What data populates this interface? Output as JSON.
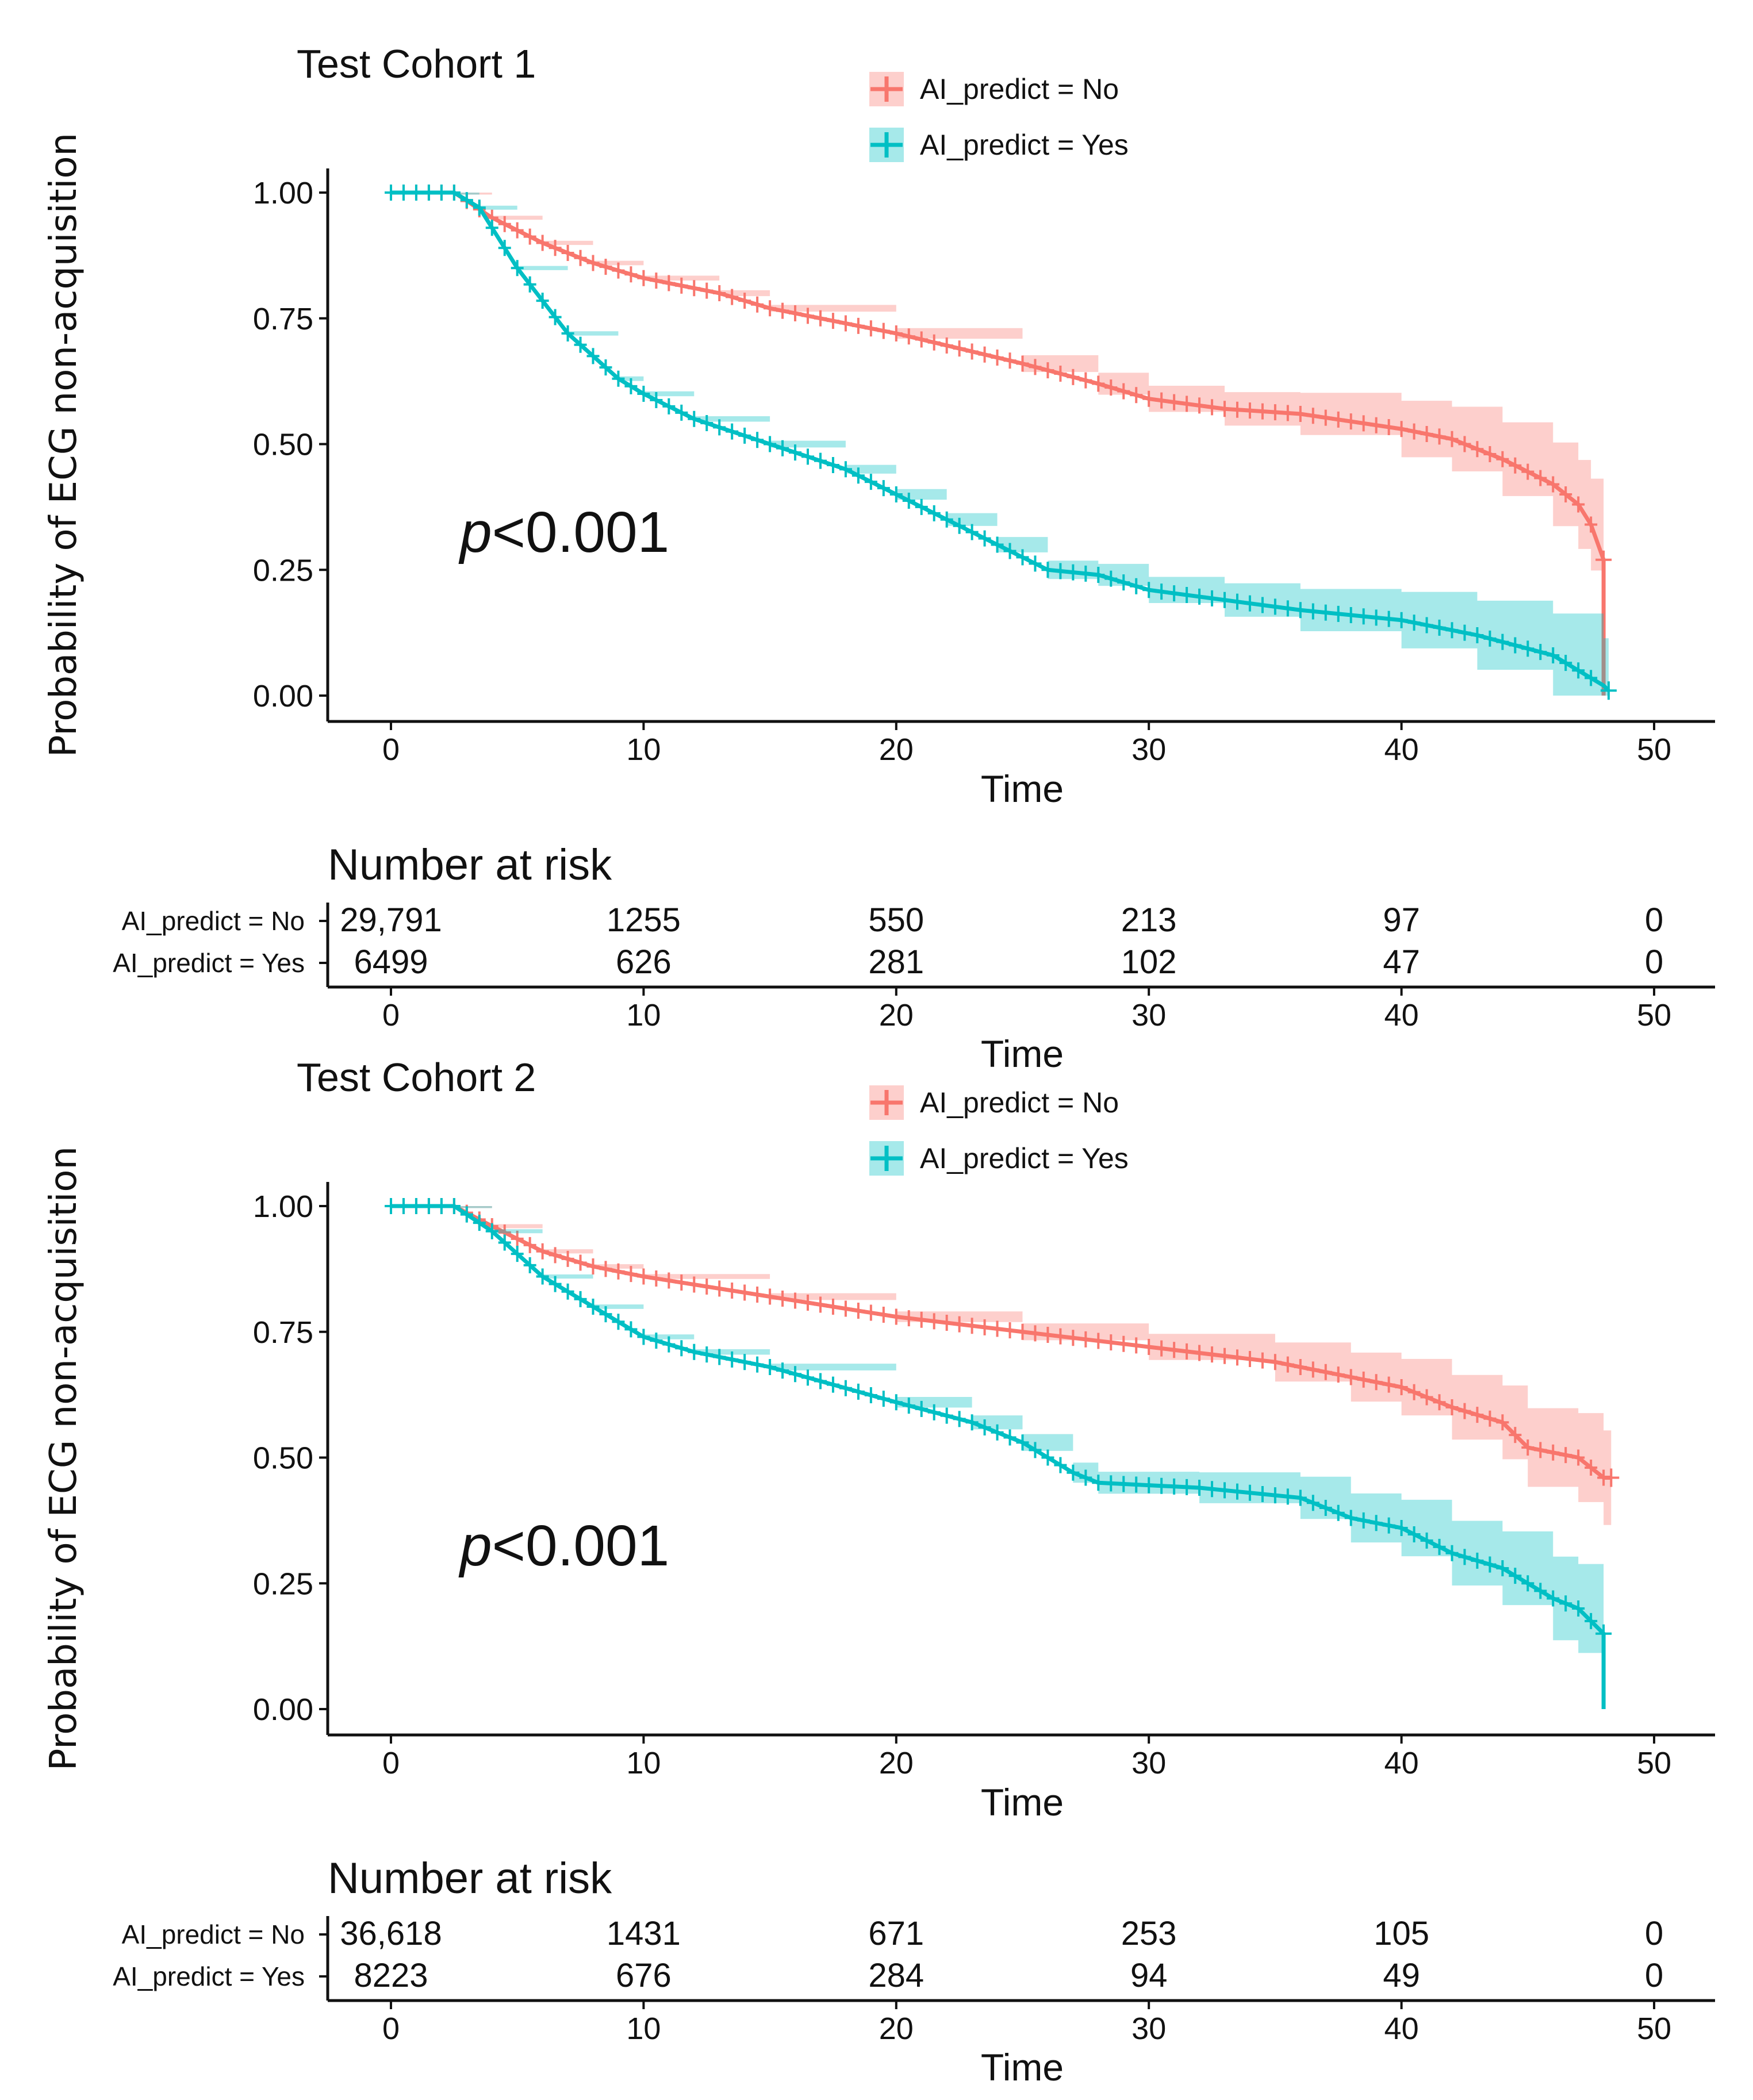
{
  "colors": {
    "no": "#F8766D",
    "yes": "#00BFC4",
    "no_band": "#F8766D",
    "yes_band": "#00BFC4"
  },
  "chart_data": [
    {
      "type": "line",
      "subtype": "kaplan-meier",
      "title": "Test Cohort 1",
      "xlabel": "Time",
      "ylabel": "Probability of ECG non-acquisition",
      "xlim": [
        0,
        50
      ],
      "ylim": [
        0,
        1
      ],
      "xticks": [
        "0",
        "10",
        "20",
        "30",
        "40",
        "50"
      ],
      "yticks": [
        "0.00",
        "0.25",
        "0.50",
        "0.75",
        "1.00"
      ],
      "annotation": "p<0.001",
      "annotation_italic": "p",
      "annotation_rest": "<0.001",
      "legend": {
        "placement": "top-right",
        "entries": [
          "AI_predict = No",
          "AI_predict = Yes"
        ]
      },
      "series": [
        {
          "name": "AI_predict = No",
          "key": "no",
          "x": [
            0,
            2.5,
            4,
            6,
            8,
            10,
            13,
            15,
            20,
            25,
            28,
            30,
            33,
            36,
            40,
            42,
            44,
            46,
            47,
            47.5,
            48,
            48
          ],
          "y": [
            1,
            1,
            0.95,
            0.9,
            0.86,
            0.83,
            0.8,
            0.77,
            0.72,
            0.66,
            0.62,
            0.59,
            0.57,
            0.56,
            0.53,
            0.51,
            0.47,
            0.42,
            0.38,
            0.34,
            0.27,
            0.0
          ]
        },
        {
          "name": "AI_predict = Yes",
          "key": "yes",
          "x": [
            0,
            2.5,
            3.5,
            5,
            7,
            9,
            10,
            12,
            15,
            18,
            20,
            22,
            24,
            26,
            28,
            30,
            33,
            36,
            40,
            43,
            46,
            48,
            48.2
          ],
          "y": [
            1,
            1,
            0.97,
            0.85,
            0.72,
            0.63,
            0.6,
            0.55,
            0.5,
            0.45,
            0.4,
            0.35,
            0.3,
            0.25,
            0.24,
            0.21,
            0.19,
            0.17,
            0.15,
            0.12,
            0.08,
            0.02,
            0.01
          ]
        }
      ],
      "risk_table": {
        "title": "Number at risk",
        "xlabel": "Time",
        "times": [
          0,
          10,
          20,
          30,
          40,
          50
        ],
        "rows": [
          {
            "label": "AI_predict = No",
            "values": [
              "29,791",
              "1255",
              "550",
              "213",
              "97",
              "0"
            ]
          },
          {
            "label": "AI_predict = Yes",
            "values": [
              "6499",
              "626",
              "281",
              "102",
              "47",
              "0"
            ]
          }
        ]
      }
    },
    {
      "type": "line",
      "subtype": "kaplan-meier",
      "title": "Test Cohort 2",
      "xlabel": "Time",
      "ylabel": "Probability of ECG non-acquisition",
      "xlim": [
        0,
        50
      ],
      "ylim": [
        0,
        1
      ],
      "xticks": [
        "0",
        "10",
        "20",
        "30",
        "40",
        "50"
      ],
      "yticks": [
        "0.00",
        "0.25",
        "0.50",
        "0.75",
        "1.00"
      ],
      "annotation": "p<0.001",
      "annotation_italic": "p",
      "annotation_rest": "<0.001",
      "legend": {
        "placement": "top-right",
        "entries": [
          "AI_predict = No",
          "AI_predict = Yes"
        ]
      },
      "series": [
        {
          "name": "AI_predict = No",
          "key": "no",
          "x": [
            0,
            2.5,
            4,
            6,
            8,
            10,
            15,
            20,
            25,
            30,
            35,
            38,
            40,
            42,
            44,
            45,
            47,
            48,
            48.3
          ],
          "y": [
            1,
            1,
            0.96,
            0.91,
            0.88,
            0.86,
            0.82,
            0.78,
            0.75,
            0.72,
            0.69,
            0.66,
            0.64,
            0.6,
            0.57,
            0.52,
            0.5,
            0.46,
            0.46
          ]
        },
        {
          "name": "AI_predict = Yes",
          "key": "yes",
          "x": [
            0,
            2.5,
            4,
            6,
            8,
            10,
            12,
            15,
            20,
            23,
            25,
            27,
            28,
            32,
            36,
            38,
            40,
            42,
            44,
            46,
            47,
            48,
            48
          ],
          "y": [
            1,
            1,
            0.95,
            0.86,
            0.8,
            0.74,
            0.71,
            0.68,
            0.61,
            0.57,
            0.53,
            0.47,
            0.45,
            0.44,
            0.42,
            0.38,
            0.36,
            0.31,
            0.28,
            0.22,
            0.2,
            0.15,
            0.0
          ]
        }
      ],
      "risk_table": {
        "title": "Number at risk",
        "xlabel": "Time",
        "times": [
          0,
          10,
          20,
          30,
          40,
          50
        ],
        "rows": [
          {
            "label": "AI_predict = No",
            "values": [
              "36,618",
              "1431",
              "671",
              "253",
              "105",
              "0"
            ]
          },
          {
            "label": "AI_predict = Yes",
            "values": [
              "8223",
              "676",
              "284",
              "94",
              "49",
              "0"
            ]
          }
        ]
      }
    }
  ]
}
